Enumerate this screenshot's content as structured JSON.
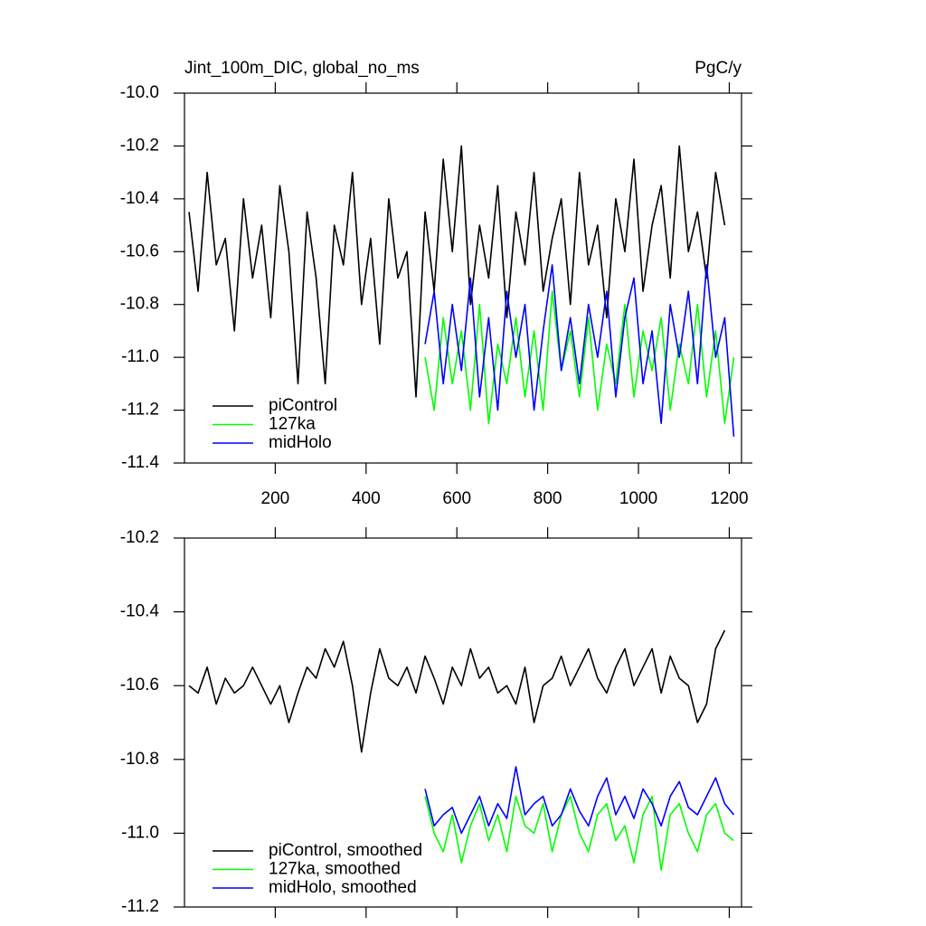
{
  "chart_data": [
    {
      "type": "line",
      "title": "Jint_100m_DIC, global_no_ms",
      "right_title": "PgC/y",
      "xlim": [
        0,
        1227
      ],
      "ylim": [
        -11.4,
        -10.0
      ],
      "xticks": [
        200,
        400,
        600,
        800,
        1000,
        1200
      ],
      "yticks": [
        {
          "value": -10.0,
          "label": "-10.0"
        },
        -10.2,
        -10.4,
        -10.6,
        -10.8,
        {
          "value": -11.0,
          "label": "-11.0"
        },
        -11.2,
        -11.4
      ],
      "series": [
        {
          "name": "piControl",
          "color": "#000000",
          "x": [
            10,
            30,
            50,
            70,
            90,
            110,
            130,
            150,
            170,
            190,
            210,
            230,
            250,
            270,
            290,
            310,
            330,
            350,
            370,
            390,
            410,
            430,
            450,
            470,
            490,
            510,
            530,
            550,
            570,
            590,
            610,
            630,
            650,
            670,
            690,
            710,
            730,
            750,
            770,
            790,
            810,
            830,
            850,
            870,
            890,
            910,
            930,
            950,
            970,
            990,
            1010,
            1030,
            1050,
            1070,
            1090,
            1110,
            1130,
            1150,
            1170,
            1190
          ],
          "values": [
            -10.45,
            -10.75,
            -10.3,
            -10.65,
            -10.55,
            -10.9,
            -10.4,
            -10.7,
            -10.5,
            -10.85,
            -10.35,
            -10.6,
            -11.1,
            -10.45,
            -10.7,
            -11.1,
            -10.5,
            -10.65,
            -10.3,
            -10.8,
            -10.55,
            -10.95,
            -10.4,
            -10.7,
            -10.6,
            -11.15,
            -10.45,
            -10.75,
            -10.25,
            -10.6,
            -10.2,
            -10.8,
            -10.5,
            -10.7,
            -10.35,
            -10.85,
            -10.45,
            -10.65,
            -10.3,
            -10.75,
            -10.55,
            -10.4,
            -10.8,
            -10.3,
            -10.65,
            -10.5,
            -10.85,
            -10.4,
            -10.6,
            -10.25,
            -10.75,
            -10.5,
            -10.35,
            -10.7,
            -10.2,
            -10.6,
            -10.45,
            -10.7,
            -10.3,
            -10.5
          ]
        },
        {
          "name": "127ka",
          "color": "#00ff00",
          "x": [
            530,
            550,
            570,
            590,
            610,
            630,
            650,
            670,
            690,
            710,
            730,
            750,
            770,
            790,
            810,
            830,
            850,
            870,
            890,
            910,
            930,
            950,
            970,
            990,
            1010,
            1030,
            1050,
            1070,
            1090,
            1110,
            1130,
            1150,
            1170,
            1190,
            1210
          ],
          "values": [
            -11.0,
            -11.2,
            -10.85,
            -11.1,
            -10.9,
            -11.2,
            -10.8,
            -11.25,
            -10.95,
            -11.1,
            -10.85,
            -11.15,
            -10.9,
            -11.2,
            -10.75,
            -11.05,
            -10.9,
            -11.15,
            -10.85,
            -11.2,
            -10.95,
            -11.1,
            -10.8,
            -11.15,
            -10.9,
            -11.05,
            -10.85,
            -11.2,
            -10.95,
            -11.1,
            -10.8,
            -11.15,
            -10.9,
            -11.25,
            -11.0
          ]
        },
        {
          "name": "midHolo",
          "color": "#0000ff",
          "x": [
            530,
            550,
            570,
            590,
            610,
            630,
            650,
            670,
            690,
            710,
            730,
            750,
            770,
            790,
            810,
            830,
            850,
            870,
            890,
            910,
            930,
            950,
            970,
            990,
            1010,
            1030,
            1050,
            1070,
            1090,
            1110,
            1130,
            1150,
            1170,
            1190,
            1210
          ],
          "values": [
            -10.95,
            -10.75,
            -11.1,
            -10.8,
            -11.05,
            -10.7,
            -11.15,
            -10.85,
            -11.2,
            -10.75,
            -11.0,
            -10.8,
            -11.2,
            -10.9,
            -10.65,
            -11.05,
            -10.85,
            -11.1,
            -10.8,
            -11.0,
            -10.75,
            -11.15,
            -10.85,
            -10.7,
            -11.1,
            -10.9,
            -11.25,
            -10.8,
            -11.0,
            -10.75,
            -11.1,
            -10.65,
            -11.0,
            -10.85,
            -11.3
          ]
        }
      ]
    },
    {
      "type": "line",
      "xlim": [
        0,
        1227
      ],
      "ylim": [
        -11.2,
        -10.2
      ],
      "xticks": [
        200,
        400,
        600,
        800,
        1000,
        1200
      ],
      "yticks": [
        -10.2,
        -10.4,
        -10.6,
        -10.8,
        {
          "value": -11.0,
          "label": "-11.0"
        },
        -11.2
      ],
      "series": [
        {
          "name": "piControl, smoothed",
          "color": "#000000",
          "x": [
            10,
            30,
            50,
            70,
            90,
            110,
            130,
            150,
            170,
            190,
            210,
            230,
            250,
            270,
            290,
            310,
            330,
            350,
            370,
            390,
            410,
            430,
            450,
            470,
            490,
            510,
            530,
            550,
            570,
            590,
            610,
            630,
            650,
            670,
            690,
            710,
            730,
            750,
            770,
            790,
            810,
            830,
            850,
            870,
            890,
            910,
            930,
            950,
            970,
            990,
            1010,
            1030,
            1050,
            1070,
            1090,
            1110,
            1130,
            1150,
            1170,
            1190
          ],
          "values": [
            -10.6,
            -10.62,
            -10.55,
            -10.65,
            -10.58,
            -10.62,
            -10.6,
            -10.55,
            -10.6,
            -10.65,
            -10.6,
            -10.7,
            -10.62,
            -10.55,
            -10.58,
            -10.5,
            -10.55,
            -10.48,
            -10.6,
            -10.78,
            -10.62,
            -10.5,
            -10.58,
            -10.6,
            -10.55,
            -10.62,
            -10.52,
            -10.58,
            -10.65,
            -10.55,
            -10.6,
            -10.5,
            -10.58,
            -10.55,
            -10.62,
            -10.6,
            -10.65,
            -10.55,
            -10.7,
            -10.6,
            -10.58,
            -10.52,
            -10.6,
            -10.55,
            -10.5,
            -10.58,
            -10.62,
            -10.55,
            -10.5,
            -10.6,
            -10.55,
            -10.5,
            -10.62,
            -10.52,
            -10.58,
            -10.6,
            -10.7,
            -10.65,
            -10.5,
            -10.45
          ]
        },
        {
          "name": "127ka, smoothed",
          "color": "#00ff00",
          "x": [
            530,
            550,
            570,
            590,
            610,
            630,
            650,
            670,
            690,
            710,
            730,
            750,
            770,
            790,
            810,
            830,
            850,
            870,
            890,
            910,
            930,
            950,
            970,
            990,
            1010,
            1030,
            1050,
            1070,
            1090,
            1110,
            1130,
            1150,
            1170,
            1190,
            1210
          ],
          "values": [
            -10.9,
            -11.0,
            -11.05,
            -10.95,
            -11.08,
            -10.98,
            -10.92,
            -11.02,
            -10.95,
            -11.05,
            -10.9,
            -10.98,
            -11.0,
            -10.92,
            -11.05,
            -10.95,
            -10.9,
            -11.0,
            -11.05,
            -10.95,
            -10.92,
            -11.02,
            -10.98,
            -11.08,
            -10.95,
            -10.9,
            -11.1,
            -10.95,
            -10.92,
            -11.0,
            -11.05,
            -10.95,
            -10.92,
            -11.0,
            -11.02
          ]
        },
        {
          "name": "midHolo, smoothed",
          "color": "#0000ff",
          "x": [
            530,
            550,
            570,
            590,
            610,
            630,
            650,
            670,
            690,
            710,
            730,
            750,
            770,
            790,
            810,
            830,
            850,
            870,
            890,
            910,
            930,
            950,
            970,
            990,
            1010,
            1030,
            1050,
            1070,
            1090,
            1110,
            1130,
            1150,
            1170,
            1190,
            1210
          ],
          "values": [
            -10.88,
            -10.98,
            -10.95,
            -10.93,
            -11.0,
            -10.95,
            -10.9,
            -10.98,
            -10.92,
            -10.96,
            -10.82,
            -10.95,
            -10.92,
            -10.9,
            -10.98,
            -10.95,
            -10.88,
            -10.94,
            -10.98,
            -10.9,
            -10.85,
            -10.95,
            -10.9,
            -10.96,
            -10.88,
            -10.92,
            -10.98,
            -10.9,
            -10.86,
            -10.93,
            -10.95,
            -10.9,
            -10.85,
            -10.92,
            -10.95
          ]
        }
      ]
    }
  ]
}
